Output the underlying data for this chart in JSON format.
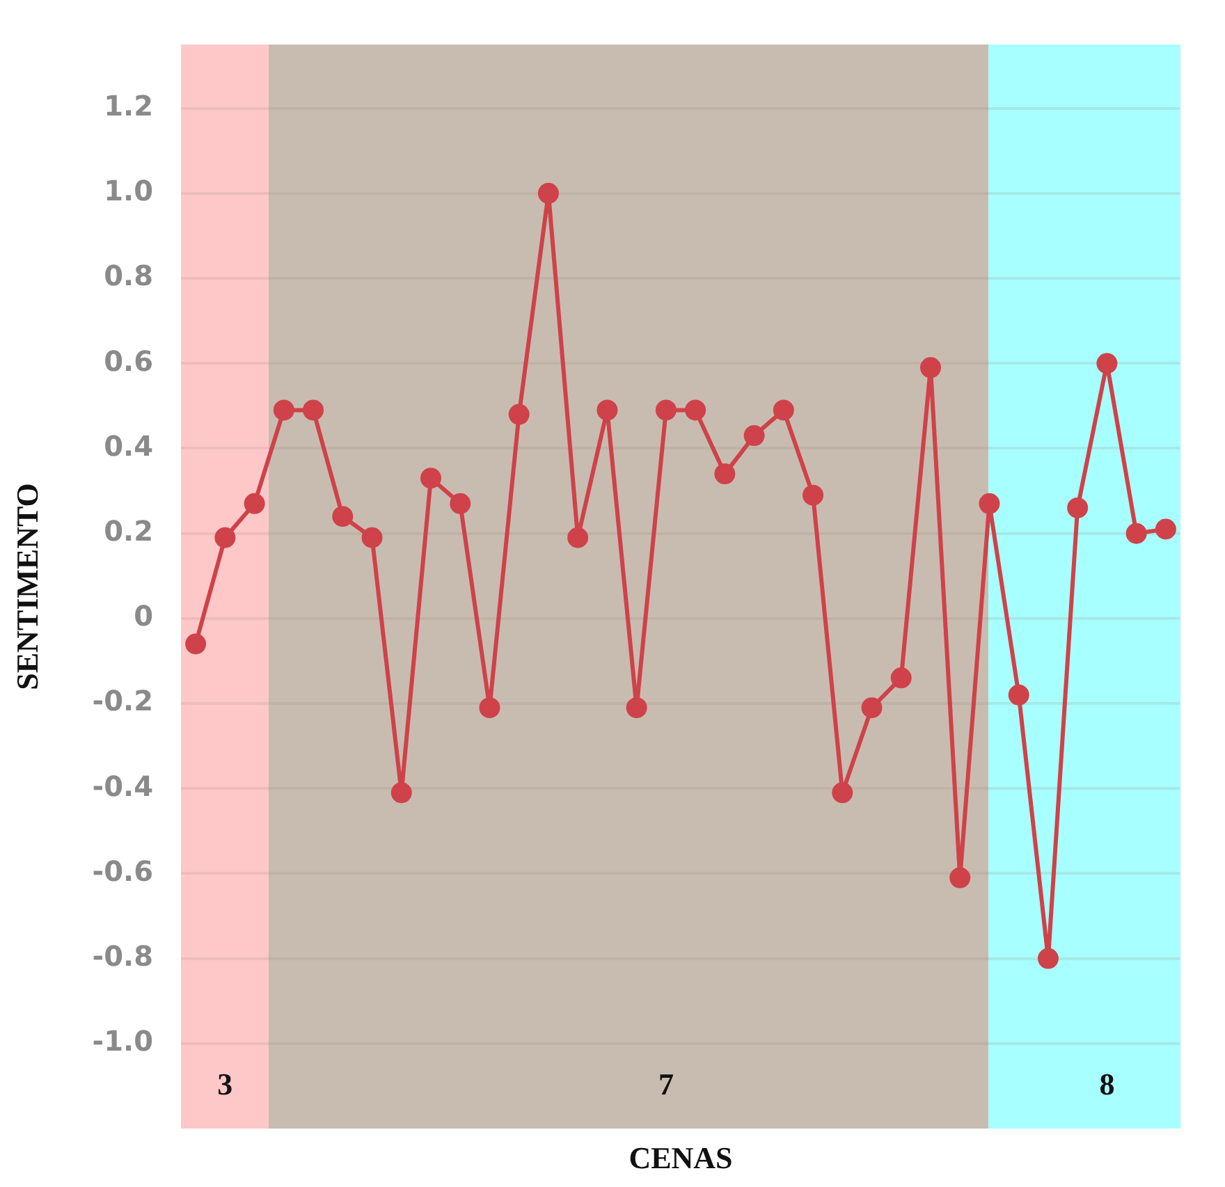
{
  "chart_data": {
    "type": "line",
    "xlabel": "CENAS",
    "ylabel": "SENTIMENTO",
    "categories": [
      null,
      "3",
      null,
      null,
      null,
      null,
      null,
      null,
      null,
      null,
      null,
      null,
      null,
      null,
      null,
      null,
      "7",
      null,
      null,
      null,
      null,
      null,
      null,
      null,
      null,
      null,
      null,
      null,
      null,
      null,
      null,
      "8",
      null,
      null
    ],
    "series": [
      {
        "color": "#cf4249",
        "values": [
          -0.06,
          0.19,
          0.27,
          0.49,
          0.49,
          0.24,
          0.19,
          -0.41,
          0.33,
          0.27,
          -0.21,
          0.48,
          1.0,
          0.19,
          0.49,
          -0.21,
          0.49,
          0.49,
          0.34,
          0.43,
          0.49,
          0.29,
          -0.41,
          -0.21,
          -0.14,
          0.59,
          -0.61,
          0.27,
          -0.18,
          -0.8,
          0.26,
          0.6,
          0.2,
          0.21
        ]
      }
    ],
    "ylim": [
      -1.2,
      1.35
    ],
    "yticks": [
      {
        "value": -1,
        "label": "-1.0"
      },
      -0.2,
      -0.4,
      -0.6,
      -0.8,
      0,
      0.2,
      0.4,
      0.6,
      0.8,
      {
        "value": 1,
        "label": "1.0"
      },
      1.2
    ],
    "grid": "y",
    "legend": false,
    "marker": "circle",
    "line_style": "solid"
  }
}
